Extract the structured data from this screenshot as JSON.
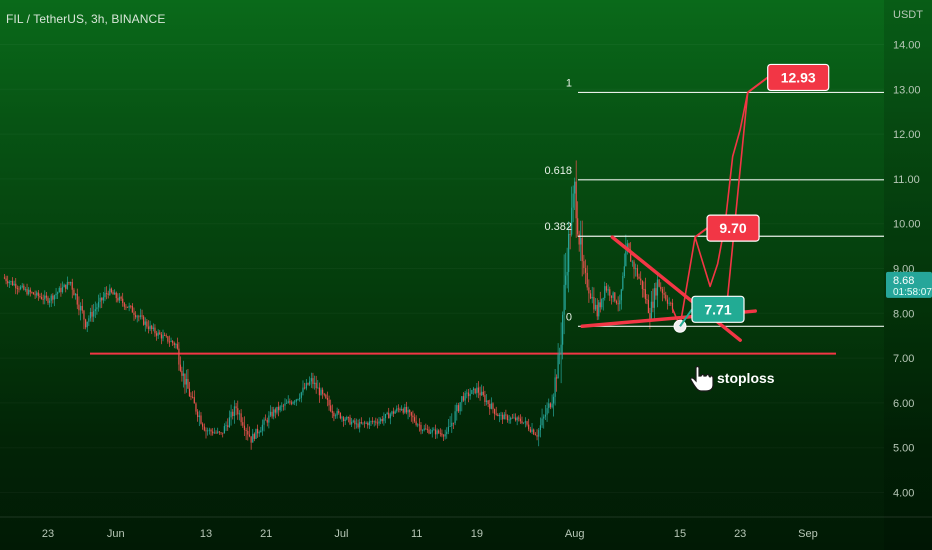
{
  "header": {
    "title": "FIL / TetherUS, 3h, BINANCE",
    "currency": "USDT"
  },
  "colors": {
    "up": "#26a69a",
    "down": "#ef5350",
    "annotation": "#f23645",
    "fib_line": "#e8efe8",
    "callout_green": "#22ab94"
  },
  "chart_data": {
    "type": "candlestick",
    "title": "FIL / TetherUS, 3h, BINANCE",
    "y_axis": {
      "ticks": [
        4.0,
        5.0,
        6.0,
        7.0,
        8.0,
        9.0,
        10.0,
        11.0,
        12.0,
        13.0,
        14.0
      ],
      "tick_labels": [
        "4.00",
        "5.00",
        "6.00",
        "7.00",
        "8.00",
        "9.00",
        "10.00",
        "11.00",
        "12.00",
        "13.00",
        "14.00"
      ],
      "range": [
        3.7,
        14.8
      ],
      "unit": "USDT"
    },
    "x_axis": {
      "tick_labels": [
        "23",
        "Jun",
        "13",
        "21",
        "Jul",
        "11",
        "19",
        "Aug",
        "15",
        "23",
        "Sep"
      ],
      "range": [
        "May 17",
        "Sep 9"
      ]
    },
    "price_path": [
      {
        "date": "May 17",
        "value": 8.8
      },
      {
        "date": "May 20",
        "value": 8.5
      },
      {
        "date": "May 23",
        "value": 8.3
      },
      {
        "date": "May 26",
        "value": 8.7
      },
      {
        "date": "May 28",
        "value": 7.8
      },
      {
        "date": "May 31",
        "value": 8.5
      },
      {
        "date": "Jun 3",
        "value": 8.1
      },
      {
        "date": "Jun 6",
        "value": 7.6
      },
      {
        "date": "Jun 9",
        "value": 7.3
      },
      {
        "date": "Jun 10",
        "value": 6.6
      },
      {
        "date": "Jun 11",
        "value": 6.1
      },
      {
        "date": "Jun 13",
        "value": 5.4
      },
      {
        "date": "Jun 15",
        "value": 5.3
      },
      {
        "date": "Jun 17",
        "value": 5.9
      },
      {
        "date": "Jun 19",
        "value": 5.2
      },
      {
        "date": "Jun 22",
        "value": 5.8
      },
      {
        "date": "Jun 25",
        "value": 6.1
      },
      {
        "date": "Jun 27",
        "value": 6.5
      },
      {
        "date": "Jun 30",
        "value": 5.8
      },
      {
        "date": "Jul 3",
        "value": 5.5
      },
      {
        "date": "Jul 6",
        "value": 5.6
      },
      {
        "date": "Jul 9",
        "value": 5.9
      },
      {
        "date": "Jul 12",
        "value": 5.4
      },
      {
        "date": "Jul 15",
        "value": 5.3
      },
      {
        "date": "Jul 17",
        "value": 6.1
      },
      {
        "date": "Jul 19",
        "value": 6.3
      },
      {
        "date": "Jul 22",
        "value": 5.7
      },
      {
        "date": "Jul 25",
        "value": 5.6
      },
      {
        "date": "Jul 27",
        "value": 5.3
      },
      {
        "date": "Jul 29",
        "value": 6.1
      },
      {
        "date": "Jul 30",
        "value": 7.1
      },
      {
        "date": "Jul 31",
        "value": 9.3
      },
      {
        "date": "Aug 1",
        "value": 10.8
      },
      {
        "date": "Aug 2",
        "value": 9.0
      },
      {
        "date": "Aug 4",
        "value": 8.0
      },
      {
        "date": "Aug 5",
        "value": 8.6
      },
      {
        "date": "Aug 7",
        "value": 8.2
      },
      {
        "date": "Aug 8",
        "value": 9.4
      },
      {
        "date": "Aug 10",
        "value": 8.6
      },
      {
        "date": "Aug 11",
        "value": 8.0
      },
      {
        "date": "Aug 12",
        "value": 8.7
      },
      {
        "date": "Aug 14",
        "value": 8.1
      }
    ],
    "fibonacci": [
      {
        "ratio": "1",
        "price": 12.93
      },
      {
        "ratio": "0.618",
        "price": 10.98
      },
      {
        "ratio": "0.382",
        "price": 9.72
      },
      {
        "ratio": "0",
        "price": 7.71
      }
    ],
    "horizontal_levels": [
      {
        "price": 7.1,
        "name": "support"
      }
    ],
    "trendlines": [
      {
        "from": {
          "date": "Aug 2",
          "price": 7.71
        },
        "to": {
          "date": "Aug 25",
          "price": 8.05
        }
      },
      {
        "from": {
          "date": "Aug 6",
          "price": 9.7
        },
        "to": {
          "date": "Aug 23",
          "price": 7.4
        }
      }
    ],
    "projection_path": [
      {
        "date": "Aug 14",
        "value": 8.1
      },
      {
        "date": "Aug 15",
        "value": 7.71
      },
      {
        "date": "Aug 17",
        "value": 9.7
      },
      {
        "date": "Aug 19",
        "value": 8.6
      },
      {
        "date": "Aug 20",
        "value": 9.1
      },
      {
        "date": "Aug 21",
        "value": 10.0
      },
      {
        "date": "Aug 22",
        "value": 11.5
      },
      {
        "date": "Aug 23",
        "value": 12.1
      },
      {
        "date": "Aug 24",
        "value": 12.93
      }
    ],
    "callouts": [
      {
        "date": "Aug 24",
        "price": 12.93,
        "label": "12.93",
        "color": "#f23645"
      },
      {
        "date": "Aug 17",
        "price": 9.7,
        "label": "9.70",
        "color": "#f23645"
      },
      {
        "date": "Aug 15",
        "price": 7.71,
        "label": "7.71",
        "color": "#22ab94"
      }
    ],
    "notes": [
      {
        "text": "stoploss",
        "icon": "pointing-hand-icon"
      }
    ],
    "last_price": {
      "value": 8.68,
      "label": "8.68",
      "countdown": "01:58:07"
    }
  }
}
